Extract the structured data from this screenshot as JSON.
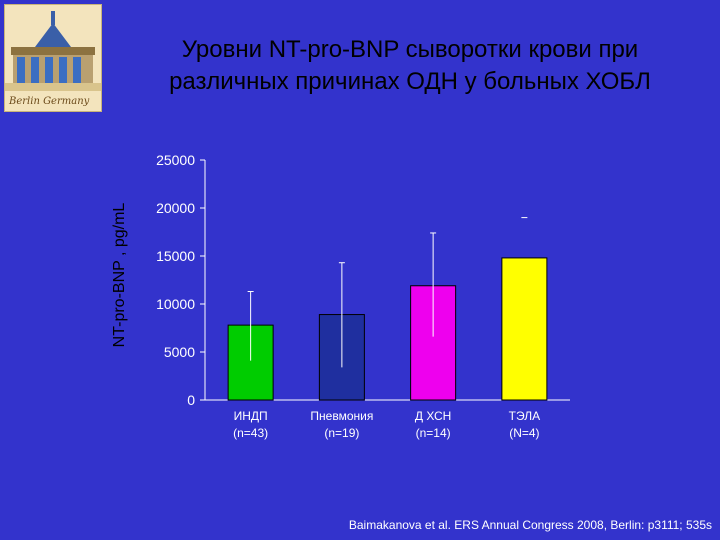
{
  "slide": {
    "title_line1": "Уровни NT-pro-BNP сыворотки крови при",
    "title_line2": "различных причинах ОДН у больных ХОБЛ",
    "logo_text": "Berlin Germany",
    "source": "Baimakanova et al. ERS Annual Congress 2008, Berlin: p3111; 535s"
  },
  "colors": {
    "background": "#3333cc",
    "axis_text": "#ffffff",
    "bars": [
      "#00cc00",
      "#1f2f9f",
      "#ee00ee",
      "#ffff00"
    ]
  },
  "chart_data": {
    "type": "bar",
    "title": "",
    "xlabel": "",
    "ylabel": "NT-pro-BNP , pg/mL",
    "ylim": [
      0,
      25000
    ],
    "yticks": [
      "0",
      "5000",
      "10000",
      "15000",
      "20000",
      "25000"
    ],
    "categories": [
      {
        "name": "ИНДП",
        "n": "(n=43)"
      },
      {
        "name": "Пневмония",
        "n": "(n=19)"
      },
      {
        "name": "Д ХСН",
        "n": "(n=14)"
      },
      {
        "name": "ТЭЛА",
        "n": "(N=4)"
      }
    ],
    "values": [
      7800,
      8900,
      11900,
      14800
    ],
    "error_bars": [
      {
        "low": 4100,
        "high": 11300
      },
      {
        "low": 3400,
        "high": 14300
      },
      {
        "low": 6600,
        "high": 17400
      },
      {
        "low": 19000,
        "high": 19000
      }
    ],
    "grid": false,
    "legend": "none"
  }
}
